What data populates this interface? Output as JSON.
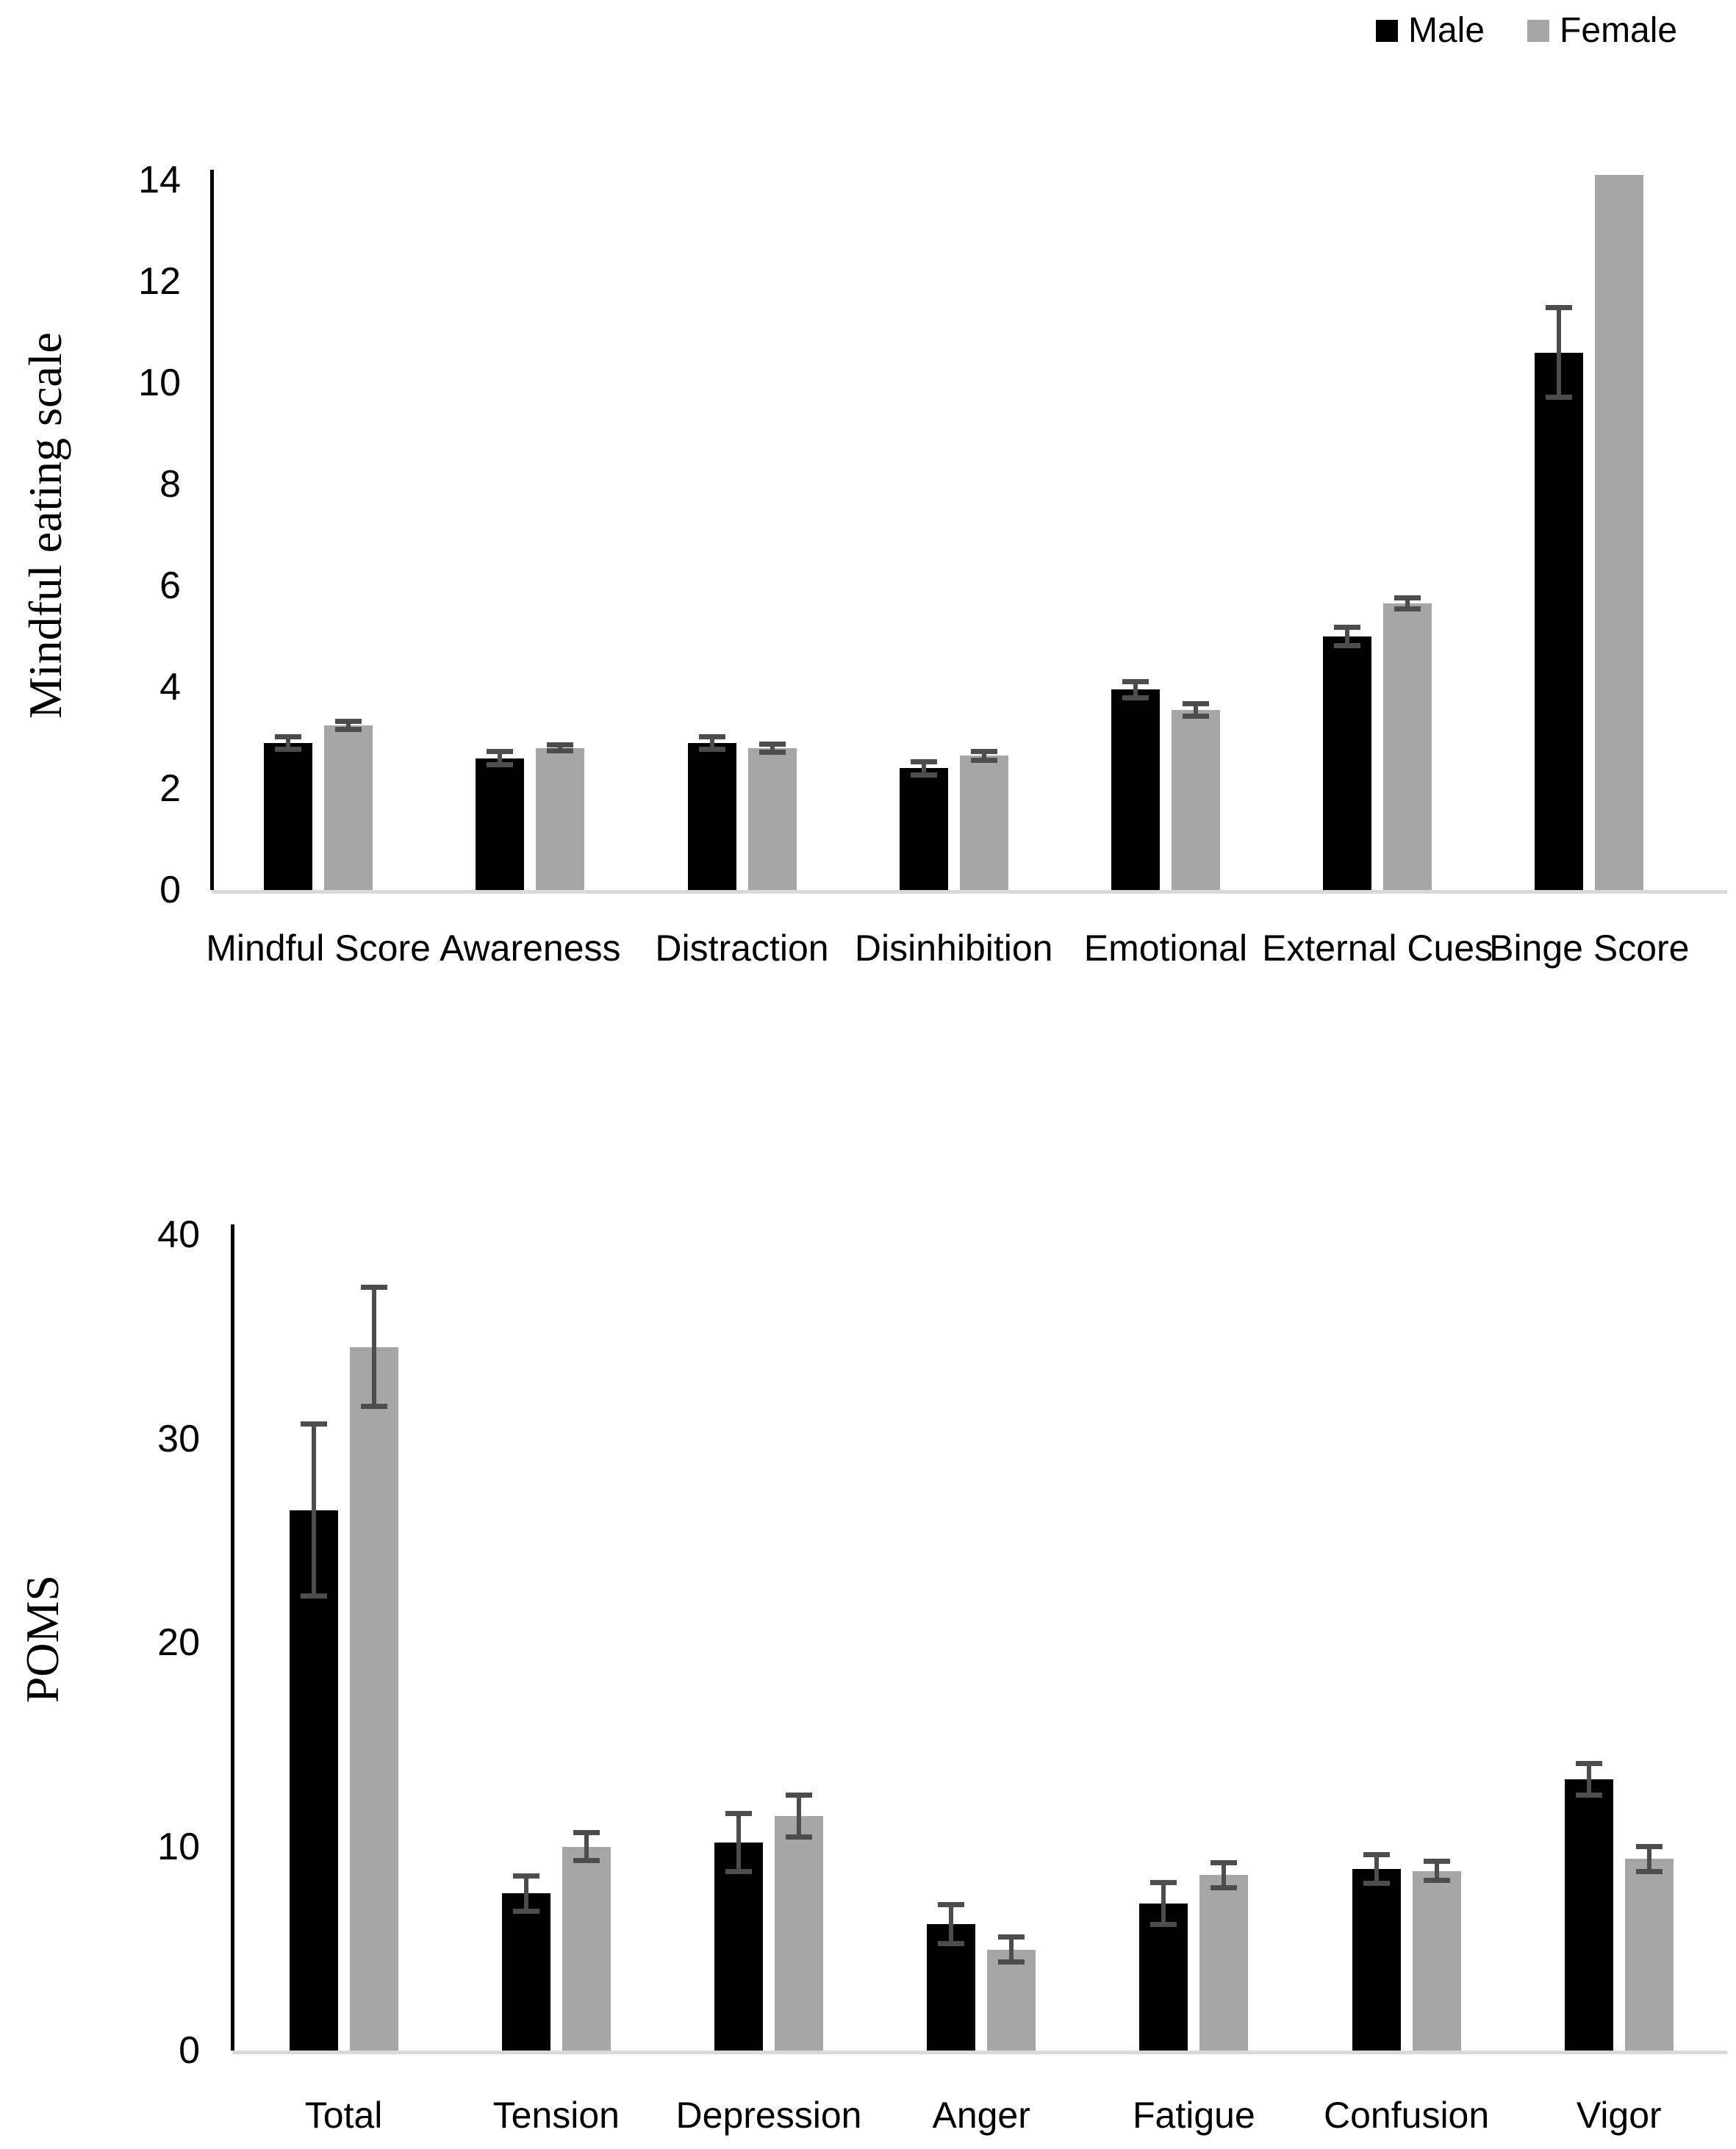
{
  "figure": {
    "background": "#ffffff"
  },
  "legend": {
    "items": [
      {
        "label": "Male",
        "color": "#000000"
      },
      {
        "label": "Female",
        "color": "#a6a6a6"
      }
    ]
  },
  "colors": {
    "male": "#000000",
    "female": "#a6a6a6",
    "error_bar": "#4d4d4d",
    "axis_line": "#000000",
    "baseline": "#d9d9d9",
    "text": "#000000",
    "background": "#ffffff"
  },
  "chart_data": [
    {
      "type": "bar",
      "title": "",
      "xlabel": "",
      "ylabel": "Mindful eating scale",
      "ylim": [
        0,
        14
      ],
      "yticks": [
        0,
        2,
        4,
        6,
        8,
        10,
        12,
        14
      ],
      "grid": false,
      "legend_position": "top-right",
      "categories": [
        "Mindful Score",
        "Awareness",
        "Distraction",
        "Disinhibition",
        "Emotional",
        "External Cues",
        "Binge Score"
      ],
      "series": [
        {
          "name": "Male",
          "color": "#000000",
          "values": [
            2.9,
            2.6,
            2.9,
            2.4,
            3.95,
            5.0,
            10.6
          ],
          "errors": [
            0.12,
            0.12,
            0.12,
            0.12,
            0.15,
            0.18,
            0.88
          ]
        },
        {
          "name": "Female",
          "color": "#a6a6a6",
          "values": [
            3.25,
            2.8,
            2.8,
            2.65,
            3.55,
            5.65,
            14.1
          ],
          "errors": [
            0.07,
            0.05,
            0.07,
            0.08,
            0.12,
            0.1,
            0
          ]
        }
      ]
    },
    {
      "type": "bar",
      "title": "",
      "xlabel": "",
      "ylabel": "POMS",
      "ylim": [
        0,
        40
      ],
      "yticks": [
        0,
        10,
        20,
        30,
        40
      ],
      "grid": false,
      "legend_position": "none",
      "categories": [
        "Total",
        "Tension",
        "Depression",
        "Anger",
        "Fatigue",
        "Confusion",
        "Vigor"
      ],
      "series": [
        {
          "name": "Male",
          "color": "#000000",
          "values": [
            26.5,
            7.7,
            10.2,
            6.2,
            7.2,
            8.9,
            13.3
          ],
          "errors": [
            4.2,
            0.85,
            1.4,
            0.95,
            1.0,
            0.7,
            0.75
          ]
        },
        {
          "name": "Female",
          "color": "#a6a6a6",
          "values": [
            34.5,
            10.0,
            11.5,
            4.95,
            8.6,
            8.8,
            9.4
          ],
          "errors": [
            2.9,
            0.65,
            1.0,
            0.6,
            0.6,
            0.45,
            0.6
          ]
        }
      ]
    }
  ]
}
